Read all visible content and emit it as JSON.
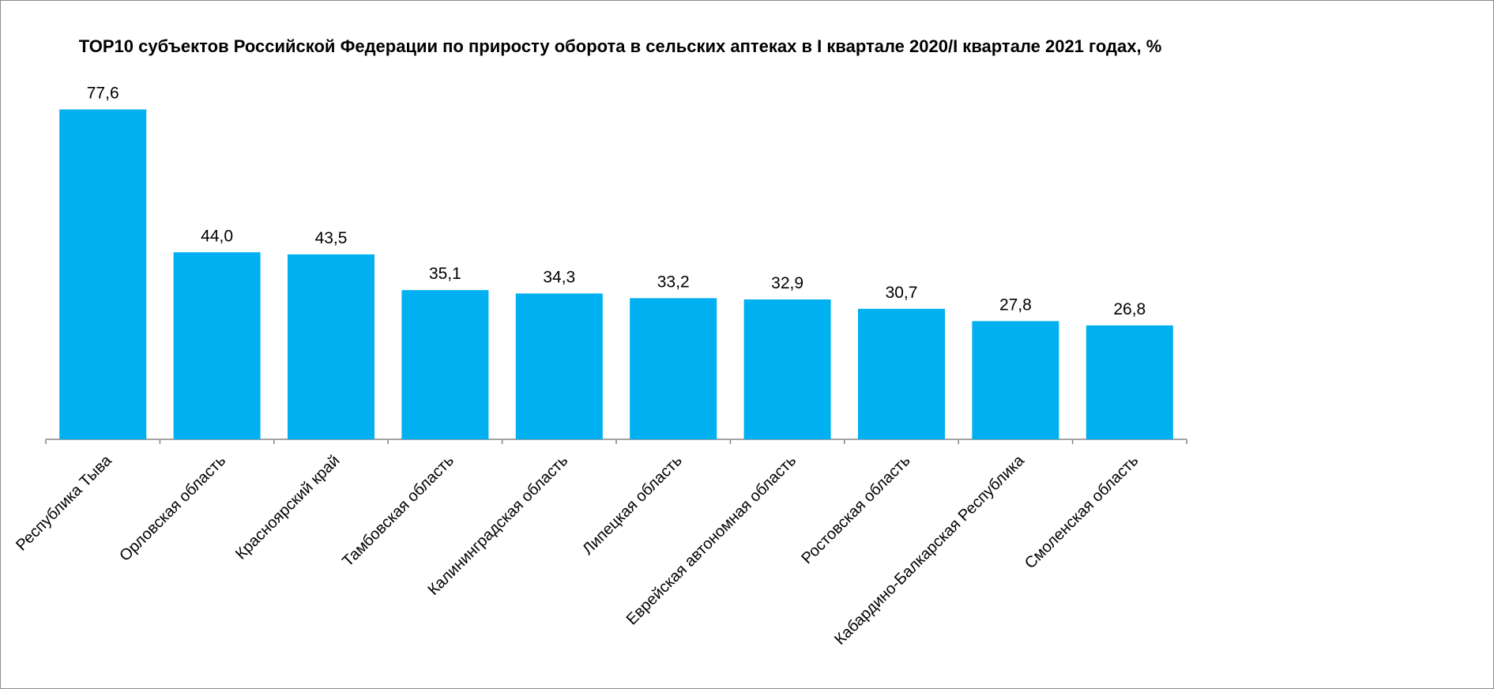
{
  "chart_data": {
    "type": "bar",
    "title": "TOP10 субъектов Российской Федерации по приросту оборота в сельских аптеках в I квартале 2020/I квартале 2021 годах, %",
    "xlabel": "",
    "ylabel": "",
    "categories": [
      "Республика Тыва",
      "Орловская область",
      "Красноярский край",
      "Тамбовская область",
      "Калининградская область",
      "Липецкая область",
      "Еврейская автономная область",
      "Ростовская область",
      "Кабардино-Балкарская Республика",
      "Смоленская область"
    ],
    "values": [
      77.6,
      44.0,
      43.5,
      35.1,
      34.3,
      33.2,
      32.9,
      30.7,
      27.8,
      26.8
    ],
    "value_labels": [
      "77,6",
      "44,0",
      "43,5",
      "35,1",
      "34,3",
      "33,2",
      "32,9",
      "30,7",
      "27,8",
      "26,8"
    ],
    "ylim": [
      0,
      80
    ],
    "grid": false,
    "legend": "none",
    "bar_color": "#00b0f0",
    "axis_color": "#868686"
  }
}
